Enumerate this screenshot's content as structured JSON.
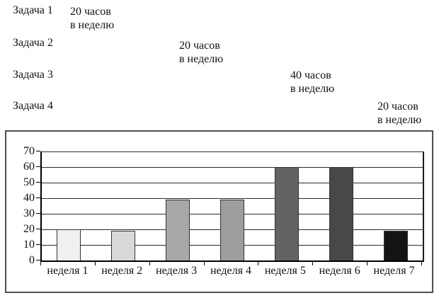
{
  "tasks": [
    {
      "name": "Задача 1",
      "hours": "20 часов",
      "per": "в неделю"
    },
    {
      "name": "Задача 2",
      "hours": "20 часов",
      "per": "в неделю"
    },
    {
      "name": "Задача 3",
      "hours": "40 часов",
      "per": "в неделю"
    },
    {
      "name": "Задача 4",
      "hours": "20 часов",
      "per": "в неделю"
    }
  ],
  "chart_data": {
    "type": "bar",
    "categories": [
      "неделя 1",
      "неделя 2",
      "неделя 3",
      "неделя 4",
      "неделя 5",
      "неделя 6",
      "неделя 7"
    ],
    "values": [
      20,
      19,
      39,
      39,
      60,
      60,
      19
    ],
    "bar_colors": [
      "#f0f0f0",
      "#d9d9d9",
      "#a8a8a8",
      "#9e9e9e",
      "#636363",
      "#484848",
      "#141414"
    ],
    "title": "",
    "xlabel": "",
    "ylabel": "",
    "ylim": [
      0,
      70
    ],
    "yticks": [
      0,
      10,
      20,
      30,
      40,
      50,
      60,
      70
    ],
    "grid": true,
    "legend": false,
    "axis_color": "#000000"
  }
}
